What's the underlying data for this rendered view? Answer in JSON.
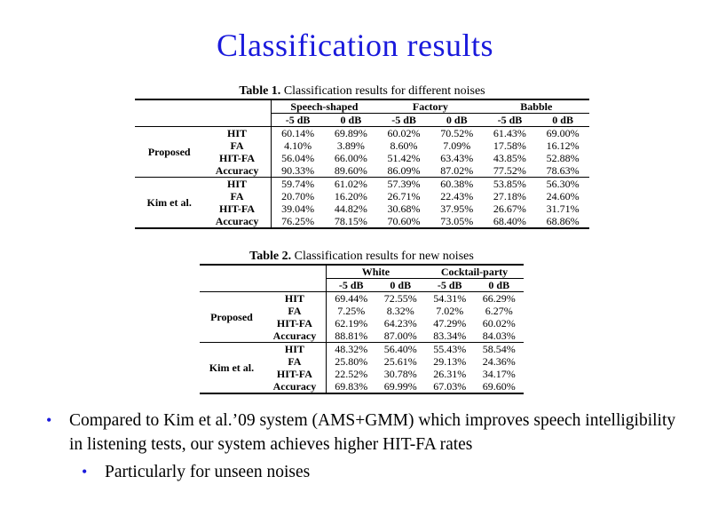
{
  "title": "Classification results",
  "table1": {
    "caption_num": "Table 1.",
    "caption_text": " Classification results for different noises",
    "groups": [
      "Speech-shaped",
      "Factory",
      "Babble"
    ],
    "subcols": [
      "-5 dB",
      "0 dB",
      "-5 dB",
      "0 dB",
      "-5 dB",
      "0 dB"
    ],
    "systems": [
      {
        "name": "Proposed",
        "rows": [
          {
            "metric": "HIT",
            "values": [
              "60.14%",
              "69.89%",
              "60.02%",
              "70.52%",
              "61.43%",
              "69.00%"
            ]
          },
          {
            "metric": "FA",
            "values": [
              "4.10%",
              "3.89%",
              "8.60%",
              "7.09%",
              "17.58%",
              "16.12%"
            ]
          },
          {
            "metric": "HIT-FA",
            "values": [
              "56.04%",
              "66.00%",
              "51.42%",
              "63.43%",
              "43.85%",
              "52.88%"
            ]
          },
          {
            "metric": "Accuracy",
            "values": [
              "90.33%",
              "89.60%",
              "86.09%",
              "87.02%",
              "77.52%",
              "78.63%"
            ]
          }
        ]
      },
      {
        "name": "Kim et al.",
        "rows": [
          {
            "metric": "HIT",
            "values": [
              "59.74%",
              "61.02%",
              "57.39%",
              "60.38%",
              "53.85%",
              "56.30%"
            ]
          },
          {
            "metric": "FA",
            "values": [
              "20.70%",
              "16.20%",
              "26.71%",
              "22.43%",
              "27.18%",
              "24.60%"
            ]
          },
          {
            "metric": "HIT-FA",
            "values": [
              "39.04%",
              "44.82%",
              "30.68%",
              "37.95%",
              "26.67%",
              "31.71%"
            ]
          },
          {
            "metric": "Accuracy",
            "values": [
              "76.25%",
              "78.15%",
              "70.60%",
              "73.05%",
              "68.40%",
              "68.86%"
            ]
          }
        ]
      }
    ]
  },
  "table2": {
    "caption_num": "Table 2.",
    "caption_text": " Classification results for new noises",
    "groups": [
      "White",
      "Cocktail-party"
    ],
    "subcols": [
      "-5 dB",
      "0 dB",
      "-5 dB",
      "0 dB"
    ],
    "systems": [
      {
        "name": "Proposed",
        "rows": [
          {
            "metric": "HIT",
            "values": [
              "69.44%",
              "72.55%",
              "54.31%",
              "66.29%"
            ]
          },
          {
            "metric": "FA",
            "values": [
              "7.25%",
              "8.32%",
              "7.02%",
              "6.27%"
            ]
          },
          {
            "metric": "HIT-FA",
            "values": [
              "62.19%",
              "64.23%",
              "47.29%",
              "60.02%"
            ]
          },
          {
            "metric": "Accuracy",
            "values": [
              "88.81%",
              "87.00%",
              "83.34%",
              "84.03%"
            ]
          }
        ]
      },
      {
        "name": "Kim et al.",
        "rows": [
          {
            "metric": "HIT",
            "values": [
              "48.32%",
              "56.40%",
              "55.43%",
              "58.54%"
            ]
          },
          {
            "metric": "FA",
            "values": [
              "25.80%",
              "25.61%",
              "29.13%",
              "24.36%"
            ]
          },
          {
            "metric": "HIT-FA",
            "values": [
              "22.52%",
              "30.78%",
              "26.31%",
              "34.17%"
            ]
          },
          {
            "metric": "Accuracy",
            "values": [
              "69.83%",
              "69.99%",
              "67.03%",
              "69.60%"
            ]
          }
        ]
      }
    ]
  },
  "bullets": {
    "b1": "Compared to Kim et al.’09 system (AMS+GMM) which improves speech intelligibility in listening tests, our system achieves higher HIT-FA  rates",
    "b2": "Particularly for unseen noises"
  },
  "colors": {
    "title": "#1a1adc",
    "bullet": "#1a1adc"
  }
}
